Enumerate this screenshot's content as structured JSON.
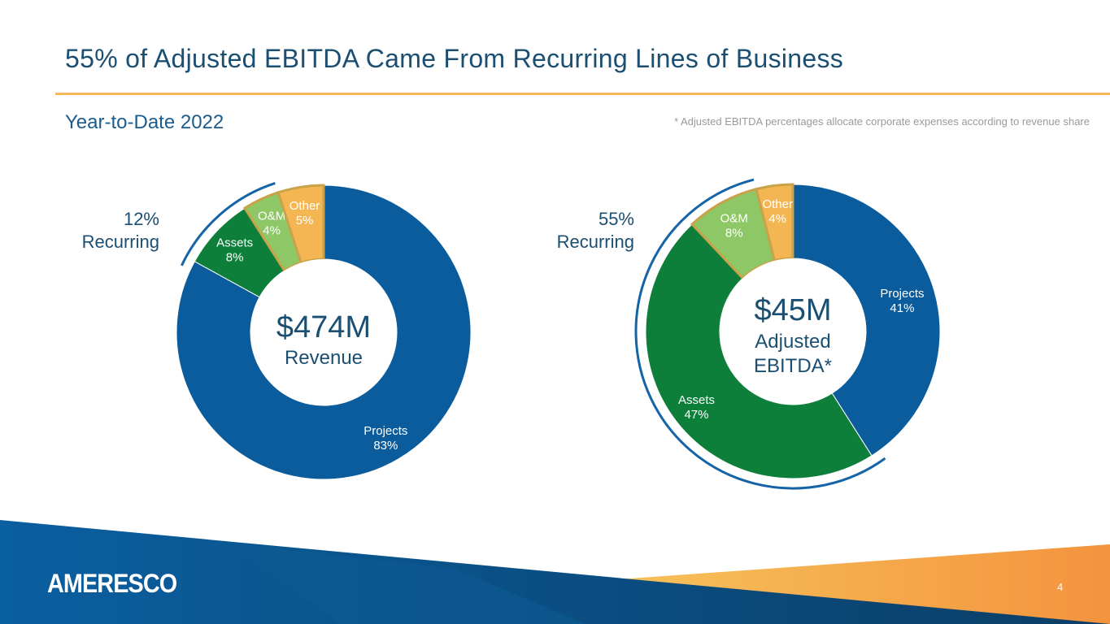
{
  "title": "55% of Adjusted EBITDA Came From Recurring Lines of Business",
  "subtitle": "Year-to-Date 2022",
  "footnote": "* Adjusted EBITDA percentages allocate corporate expenses according to revenue share",
  "logo": "AMERESCO",
  "page_number": "4",
  "colors": {
    "Projects": "#0a5c9c",
    "Assets": "#0d7f3a",
    "O&M": "#8ec765",
    "Other": "#f4b653"
  },
  "chart_data": [
    {
      "type": "pie",
      "donut": true,
      "title": "Revenue",
      "center_value": "$474M",
      "center_label": "Revenue",
      "recurring_pct": "12%",
      "recurring_label": "Recurring",
      "categories": [
        "Projects",
        "Assets",
        "O&M",
        "Other"
      ],
      "values": [
        83,
        8,
        4,
        5
      ],
      "labels": [
        "83%",
        "8%",
        "4%",
        "5%"
      ]
    },
    {
      "type": "pie",
      "donut": true,
      "title": "Adjusted EBITDA",
      "center_value": "$45M",
      "center_label": "Adjusted EBITDA*",
      "recurring_pct": "55%",
      "recurring_label": "Recurring",
      "categories": [
        "Projects",
        "Assets",
        "O&M",
        "Other"
      ],
      "values": [
        41,
        47,
        8,
        4
      ],
      "labels": [
        "41%",
        "47%",
        "8%",
        "4%"
      ]
    }
  ]
}
